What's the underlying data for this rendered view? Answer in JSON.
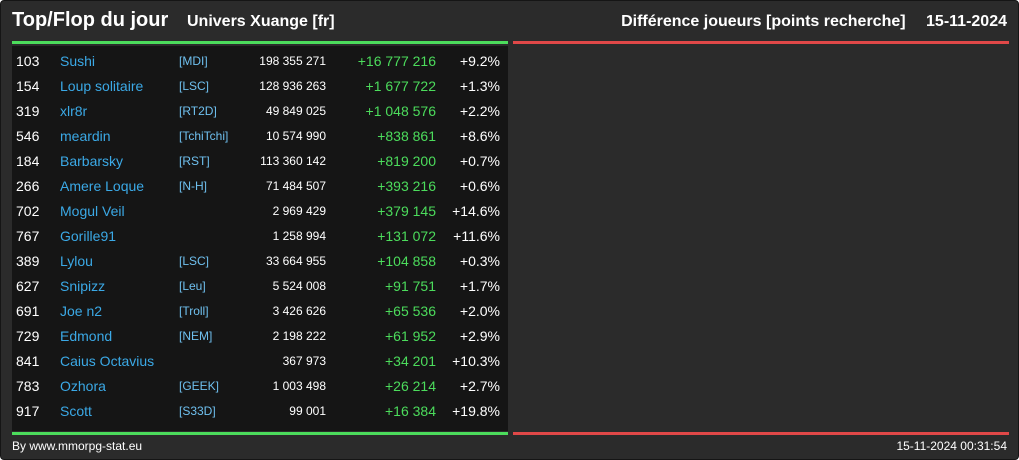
{
  "header": {
    "title": "Top/Flop du jour",
    "universe": "Univers Xuange [fr]",
    "category": "Différence joueurs [points recherche]",
    "date": "15-11-2024"
  },
  "colors": {
    "background": "#2b2b2b",
    "panel": "#151515",
    "top_accent": "#4cdc5c",
    "flop_accent": "#e04848",
    "player_link": "#3ba9e6",
    "gain": "#4cdc5c"
  },
  "rows": [
    {
      "rank": "103",
      "name": "Sushi",
      "alliance": "[MDI]",
      "total": "198 355 271",
      "diff": "+16 777 216",
      "pct": "+9.2%"
    },
    {
      "rank": "154",
      "name": "Loup solitaire",
      "alliance": "[LSC]",
      "total": "128 936 263",
      "diff": "+1 677 722",
      "pct": "+1.3%"
    },
    {
      "rank": "319",
      "name": "xlr8r",
      "alliance": "[RT2D]",
      "total": "49 849 025",
      "diff": "+1 048 576",
      "pct": "+2.2%"
    },
    {
      "rank": "546",
      "name": "meardin",
      "alliance": "[TchiTchi]",
      "total": "10 574 990",
      "diff": "+838 861",
      "pct": "+8.6%"
    },
    {
      "rank": "184",
      "name": "Barbarsky",
      "alliance": "[RST]",
      "total": "113 360 142",
      "diff": "+819 200",
      "pct": "+0.7%"
    },
    {
      "rank": "266",
      "name": "Amere Loque",
      "alliance": "[N-H]",
      "total": "71 484 507",
      "diff": "+393 216",
      "pct": "+0.6%"
    },
    {
      "rank": "702",
      "name": "Mogul Veil",
      "alliance": "",
      "total": "2 969 429",
      "diff": "+379 145",
      "pct": "+14.6%"
    },
    {
      "rank": "767",
      "name": "Gorille91",
      "alliance": "",
      "total": "1 258 994",
      "diff": "+131 072",
      "pct": "+11.6%"
    },
    {
      "rank": "389",
      "name": "Lylou",
      "alliance": "[LSC]",
      "total": "33 664 955",
      "diff": "+104 858",
      "pct": "+0.3%"
    },
    {
      "rank": "627",
      "name": "Snipizz",
      "alliance": "[Leu]",
      "total": "5 524 008",
      "diff": "+91 751",
      "pct": "+1.7%"
    },
    {
      "rank": "691",
      "name": "Joe n2",
      "alliance": "[Troll]",
      "total": "3 426 626",
      "diff": "+65 536",
      "pct": "+2.0%"
    },
    {
      "rank": "729",
      "name": "Edmond",
      "alliance": "[NEM]",
      "total": "2 198 222",
      "diff": "+61 952",
      "pct": "+2.9%"
    },
    {
      "rank": "841",
      "name": "Caius Octavius",
      "alliance": "",
      "total": "367 973",
      "diff": "+34 201",
      "pct": "+10.3%"
    },
    {
      "rank": "783",
      "name": "Ozhora",
      "alliance": "[GEEK]",
      "total": "1 003 498",
      "diff": "+26 214",
      "pct": "+2.7%"
    },
    {
      "rank": "917",
      "name": "Scott",
      "alliance": "[S33D]",
      "total": "99 001",
      "diff": "+16 384",
      "pct": "+19.8%"
    }
  ],
  "footer": {
    "credit": "By www.mmorpg-stat.eu",
    "generated": "15-11-2024 00:31:54"
  }
}
